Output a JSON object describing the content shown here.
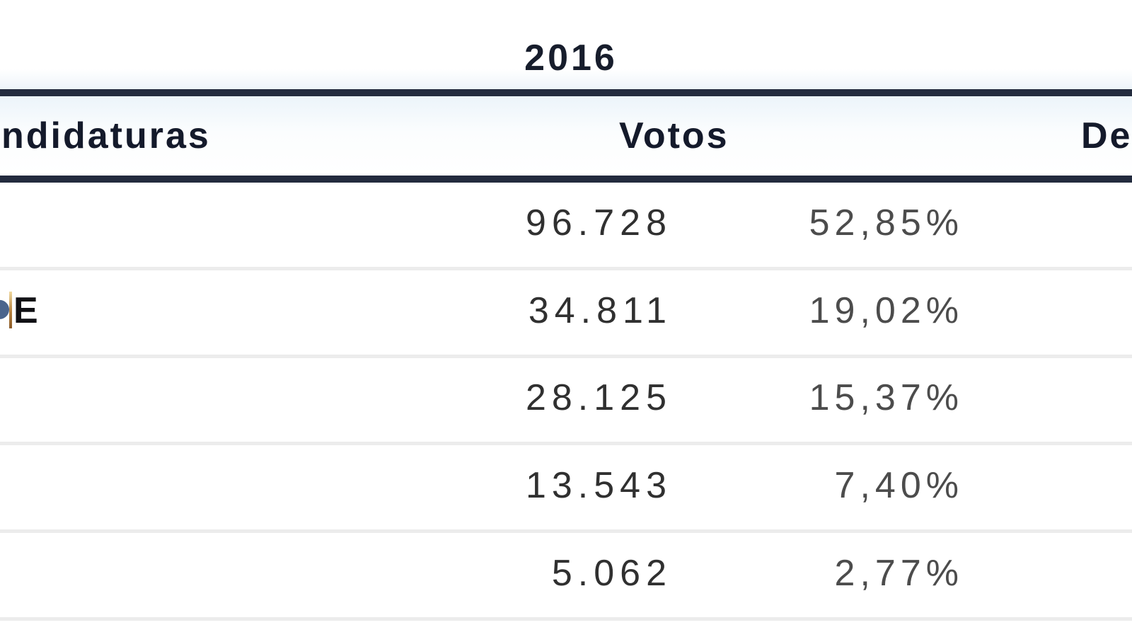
{
  "title": "2016",
  "header": {
    "candidaturas_fragment": "ndidaturas",
    "votos": "Votos",
    "deputados_fragment": "De"
  },
  "colors": {
    "rule_navy": "#232b3e",
    "header_text": "#141a2b",
    "title_text": "#171d2c",
    "votes_text": "#303030",
    "percent_text": "#4c4c4c",
    "row_separator": "#ececec",
    "header_band_tint": "#ecf4fa",
    "logo_fragment_blue": "#4a648c",
    "logo_fragment_amber": "#b5813f"
  },
  "chart_data": {
    "type": "table",
    "title": "2016",
    "visible_column_headers": [
      "ndidaturas",
      "Votos",
      "De"
    ],
    "columns_note": "left header and right header are cut off by the screenshot crop; party-name column and deputies column values are outside the visible area",
    "rows": [
      {
        "label_fragment": "",
        "votos": "96.728",
        "percent": "52,85%"
      },
      {
        "label_fragment": "E",
        "votos": "34.811",
        "percent": "19,02%"
      },
      {
        "label_fragment": "",
        "votos": "28.125",
        "percent": "15,37%"
      },
      {
        "label_fragment": "",
        "votos": "13.543",
        "percent": "7,40%"
      },
      {
        "label_fragment": "",
        "votos": "5.062",
        "percent": "2,77%"
      }
    ],
    "layout": {
      "grid": "horizontal separators only",
      "votes_alignment": "right",
      "percent_alignment": "right",
      "header_rule": "thick navy above and below header row"
    }
  }
}
